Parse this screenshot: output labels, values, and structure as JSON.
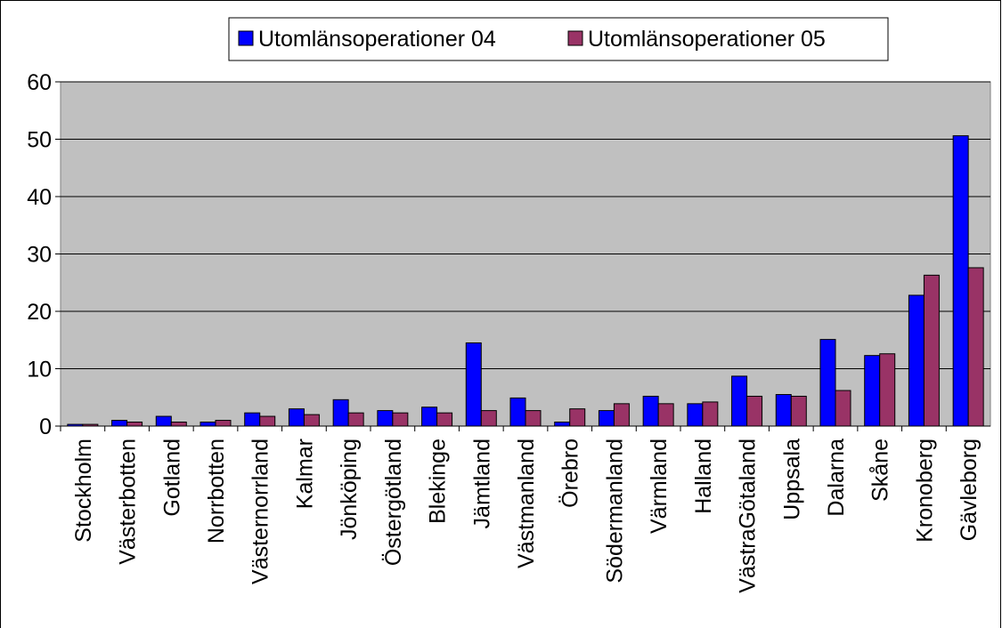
{
  "chart_data": {
    "type": "bar",
    "categories": [
      "Stockholm",
      "Västerbotten",
      "Gotland",
      "Norrbotten",
      "Västernorrland",
      "Kalmar",
      "Jönköping",
      "Östergötland",
      "Blekinge",
      "Jämtland",
      "Västmanland",
      "Örebro",
      "Södermanland",
      "Värmland",
      "Halland",
      "VästraGötaland",
      "Uppsala",
      "Dalarna",
      "Skåne",
      "Kronoberg",
      "Gävleborg"
    ],
    "series": [
      {
        "name": "Utomlänsoperationer 04",
        "color": "#0000ff",
        "values": [
          0.3,
          1.0,
          1.7,
          0.7,
          2.3,
          3.0,
          4.6,
          2.7,
          3.3,
          14.5,
          4.9,
          0.7,
          2.7,
          5.2,
          3.9,
          8.7,
          5.5,
          15.1,
          12.3,
          22.8,
          50.6
        ]
      },
      {
        "name": "Utomlänsoperationer 05",
        "color": "#993366",
        "values": [
          0.3,
          0.7,
          0.7,
          1.0,
          1.7,
          2.0,
          2.3,
          2.3,
          2.3,
          2.7,
          2.7,
          3.0,
          3.9,
          3.9,
          4.2,
          5.2,
          5.2,
          6.2,
          12.6,
          26.3,
          27.6
        ]
      }
    ],
    "ylim": [
      0,
      60
    ],
    "yticks": [
      0,
      10,
      20,
      30,
      40,
      50,
      60
    ],
    "grid": true,
    "legend": "top"
  }
}
